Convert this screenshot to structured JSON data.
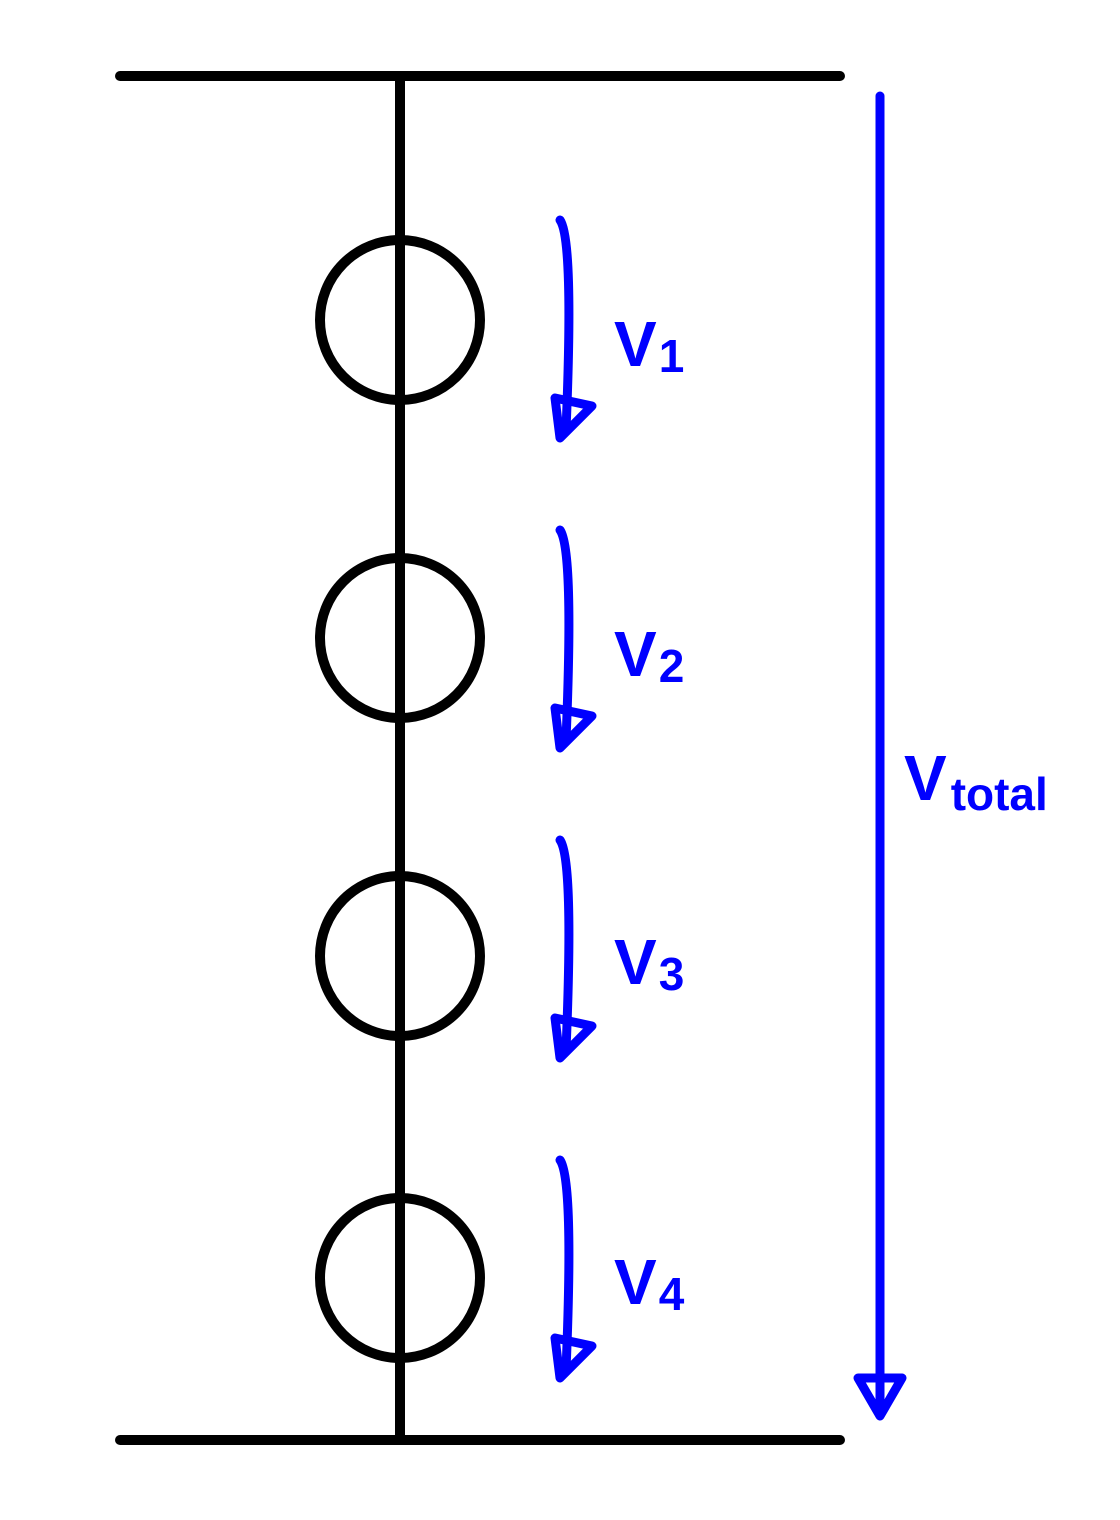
{
  "colors": {
    "circuit": "#000000",
    "voltage": "#0000ff"
  },
  "elements": [
    {
      "main": "V",
      "sub": "1"
    },
    {
      "main": "V",
      "sub": "2"
    },
    {
      "main": "V",
      "sub": "3"
    },
    {
      "main": "V",
      "sub": "4"
    }
  ],
  "total": {
    "main": "V",
    "sub": "total"
  }
}
